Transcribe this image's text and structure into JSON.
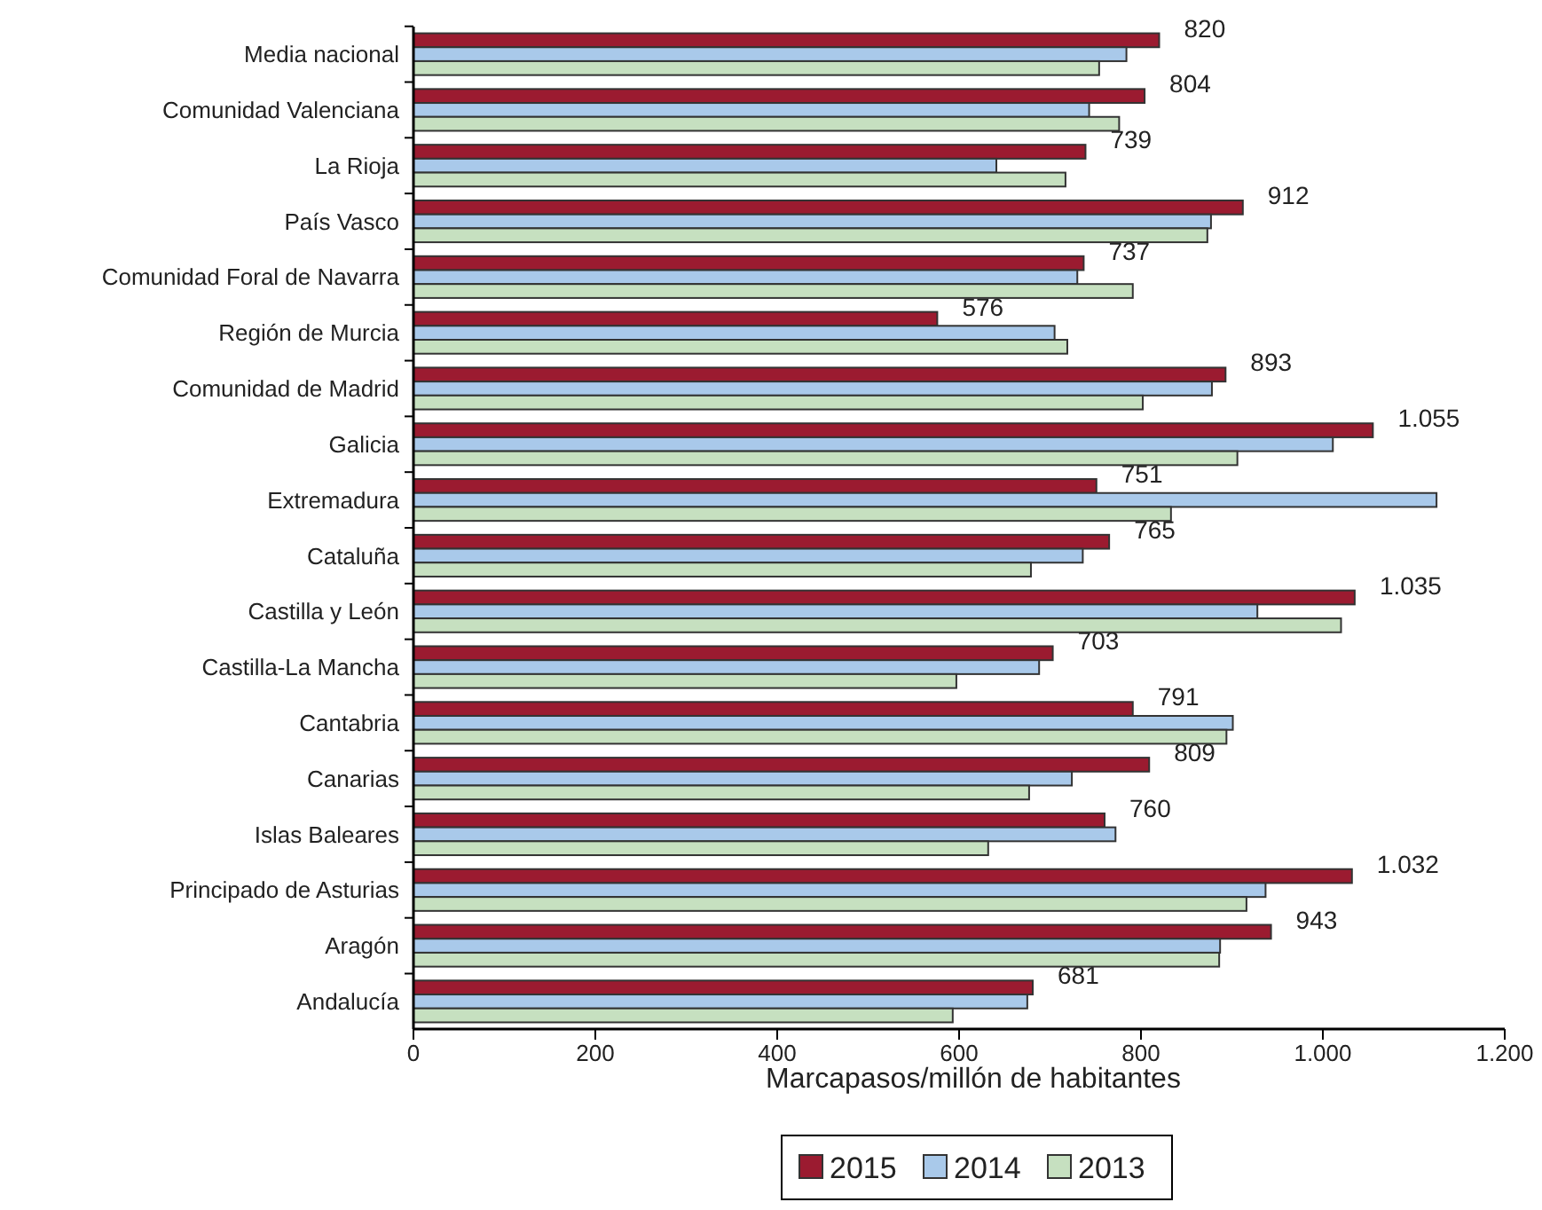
{
  "chart_data": {
    "type": "bar",
    "orientation": "horizontal",
    "xlabel": "Marcapasos/millón de habitantes",
    "categories": [
      "Media nacional",
      "Comunidad Valenciana",
      "La Rioja",
      "País Vasco",
      "Comunidad Foral de Navarra",
      "Región de Murcia",
      "Comunidad de Madrid",
      "Galicia",
      "Extremadura",
      "Cataluña",
      "Castilla y León",
      "Castilla-La Mancha",
      "Cantabria",
      "Canarias",
      "Islas Baleares",
      "Principado de Asturias",
      "Aragón",
      "Andalucía"
    ],
    "series": [
      {
        "name": "2015",
        "color": "#9b1b30",
        "values": [
          820,
          804,
          739,
          912,
          737,
          576,
          893,
          1055,
          751,
          765,
          1035,
          703,
          791,
          809,
          760,
          1032,
          943,
          681
        ],
        "value_labels": [
          "820",
          "804",
          "739",
          "912",
          "737",
          "576",
          "893",
          "1.055",
          "751",
          "765",
          "1.035",
          "703",
          "791",
          "809",
          "760",
          "1.032",
          "943",
          "681"
        ]
      },
      {
        "name": "2014",
        "color": "#a9c9ea",
        "values": [
          784,
          743,
          641,
          877,
          730,
          705,
          878,
          1011,
          1125,
          736,
          928,
          688,
          901,
          724,
          772,
          937,
          887,
          675
        ]
      },
      {
        "name": "2013",
        "color": "#c6e0c0",
        "values": [
          754,
          776,
          717,
          873,
          791,
          719,
          802,
          906,
          833,
          679,
          1020,
          597,
          894,
          677,
          632,
          916,
          886,
          593
        ]
      }
    ],
    "xlim": [
      0,
      1200
    ],
    "xticks": [
      0,
      200,
      400,
      600,
      800,
      {
        "value": 1000,
        "label": "1.000"
      },
      {
        "value": 1200,
        "label": "1.200"
      }
    ],
    "grid": false,
    "legend": "bottom"
  }
}
